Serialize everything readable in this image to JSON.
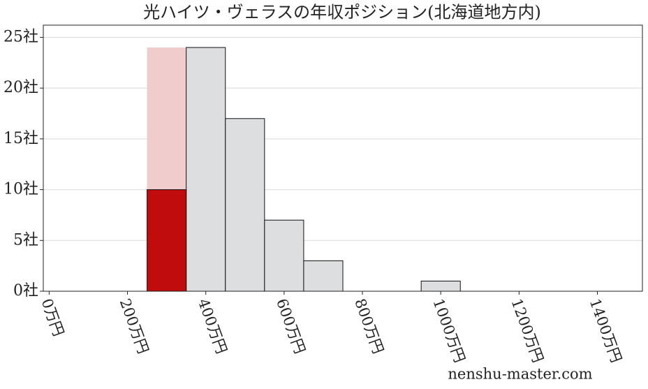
{
  "chart_data": {
    "type": "histogram",
    "title": "光ハイツ・ヴェラスの年収ポジション(北海道地方内)",
    "bins": [
      250,
      350,
      450,
      550,
      650,
      750,
      850,
      950,
      1050
    ],
    "values": [
      24,
      24,
      17,
      7,
      3,
      0,
      0,
      1
    ],
    "color": "#dddee0",
    "highlight": {
      "bin_index": 0,
      "value": 10,
      "color": "#c00c0c",
      "background_color": "#f0cccc"
    },
    "xlim": [
      -15,
      1515
    ],
    "xticks": [
      {
        "value": 0,
        "label": "0万円"
      },
      {
        "value": 200,
        "label": "200万円"
      },
      {
        "value": 400,
        "label": "400万円"
      },
      {
        "value": 600,
        "label": "600万円"
      },
      {
        "value": 800,
        "label": "800万円"
      },
      {
        "value": 1000,
        "label": "1000万円"
      },
      {
        "value": 1200,
        "label": "1200万円"
      },
      {
        "value": 1400,
        "label": "1400万円"
      }
    ],
    "ylim": [
      0,
      26.2
    ],
    "yticks": [
      {
        "value": 0,
        "label": "0社"
      },
      {
        "value": 5,
        "label": "5社"
      },
      {
        "value": 10,
        "label": "10社"
      },
      {
        "value": 15,
        "label": "15社"
      },
      {
        "value": 20,
        "label": "20社"
      },
      {
        "value": 25,
        "label": "25社"
      }
    ],
    "grid": true,
    "watermark": "nenshu-master.com"
  }
}
